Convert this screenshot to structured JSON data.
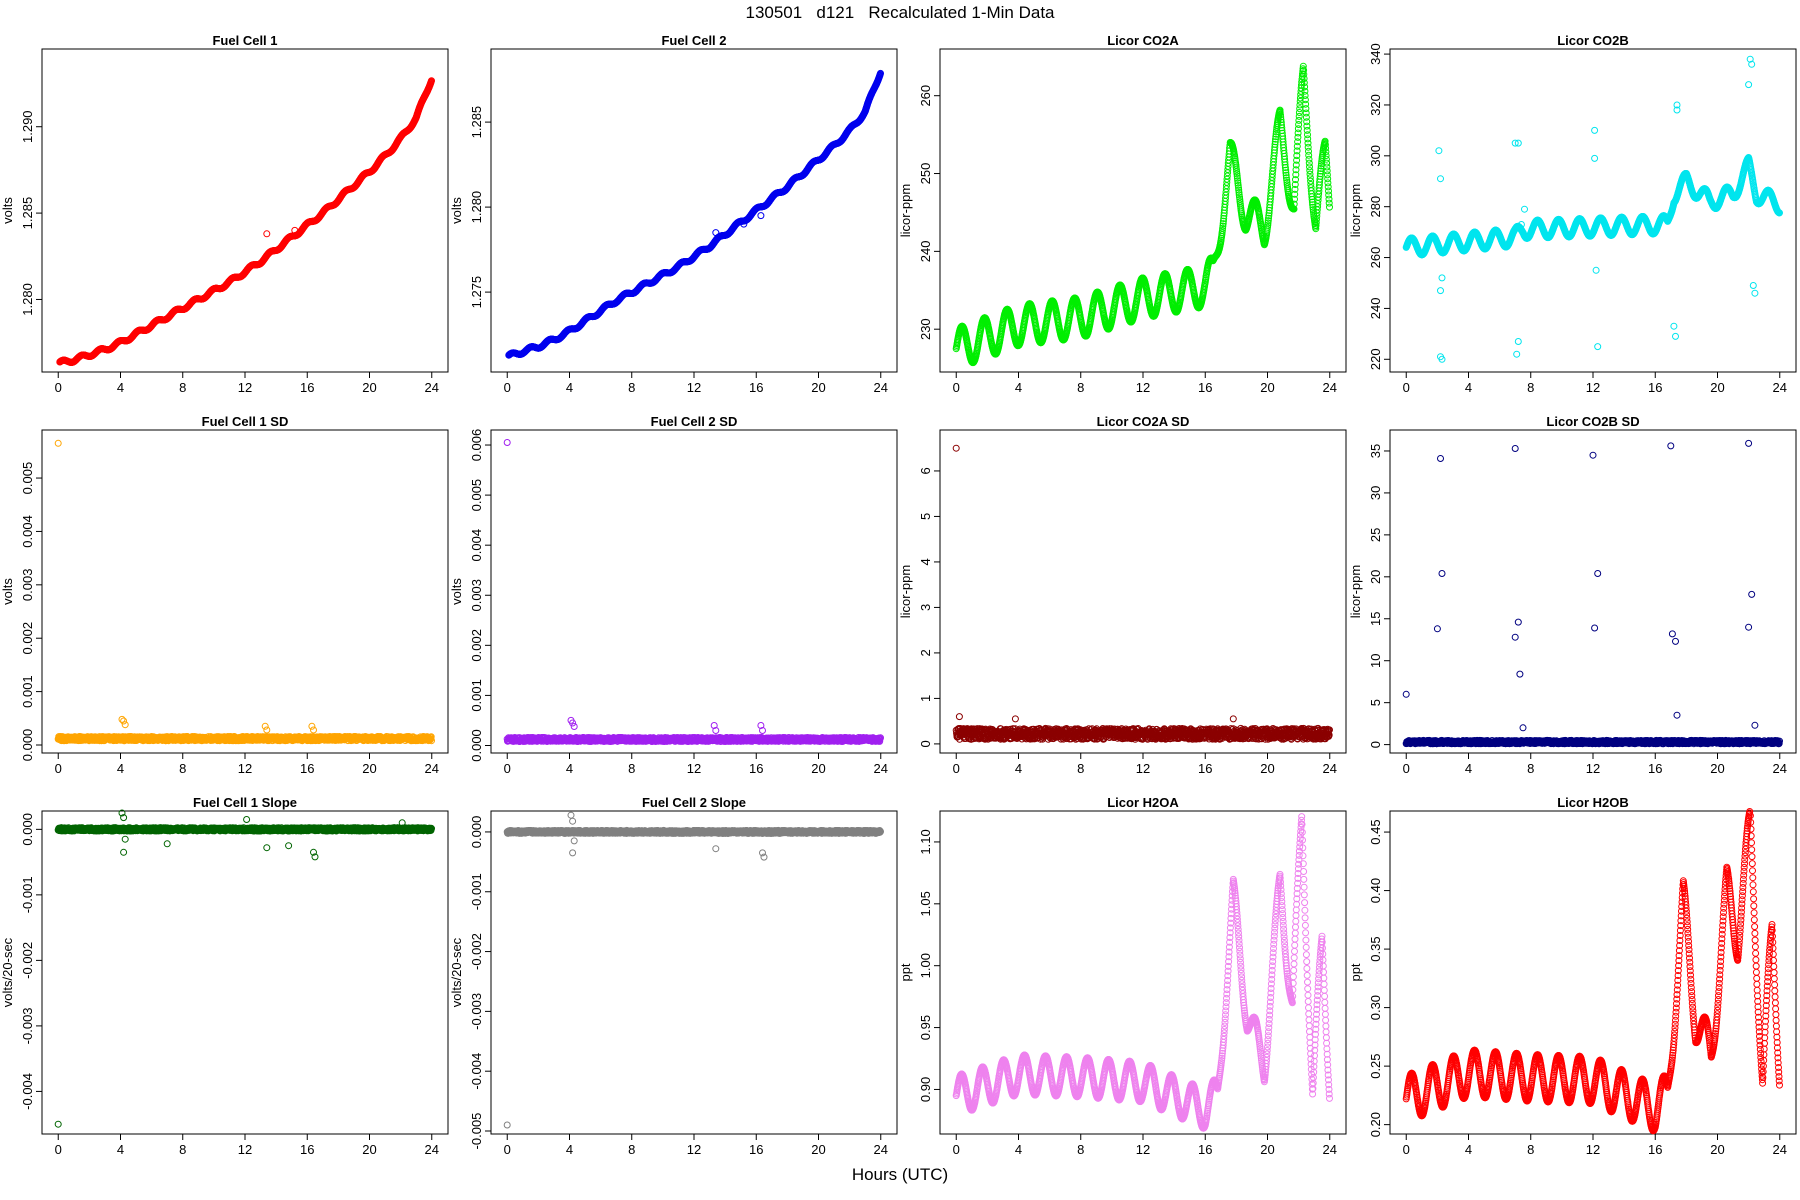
{
  "figure": {
    "title": "130501   d121   Recalculated 1-Min Data",
    "xlabel": "Hours (UTC)"
  },
  "chart_data": [
    {
      "id": "fc1",
      "type": "scatter",
      "title": "Fuel Cell 1",
      "ylabel": "volts",
      "color": "#ff0000",
      "xlim": [
        0,
        24
      ],
      "xticks": [
        0,
        4,
        8,
        12,
        16,
        20,
        24
      ],
      "ylim": [
        1.2758,
        1.2945
      ],
      "yticks": [
        1.28,
        1.285,
        1.29
      ],
      "yticklabels": [
        "1.280",
        "1.285",
        "1.290"
      ],
      "shape": "trend",
      "x": [
        0,
        1,
        2,
        3,
        4,
        5,
        6,
        7,
        8,
        9,
        10,
        11,
        12,
        13,
        14,
        15,
        16,
        17,
        18,
        19,
        20,
        21,
        22,
        23,
        24
      ],
      "y": [
        1.2763,
        1.2765,
        1.2768,
        1.2771,
        1.2775,
        1.278,
        1.2785,
        1.279,
        1.2795,
        1.28,
        1.2805,
        1.281,
        1.2816,
        1.2822,
        1.2829,
        1.2836,
        1.2843,
        1.285,
        1.2858,
        1.2866,
        1.2874,
        1.2883,
        1.2893,
        1.2905,
        1.2928
      ],
      "outliers": [
        [
          13.4,
          1.2838
        ],
        [
          15.2,
          1.284
        ],
        [
          16.3,
          1.2845
        ]
      ]
    },
    {
      "id": "fc2",
      "type": "scatter",
      "title": "Fuel Cell 2",
      "ylabel": "volts",
      "color": "#0000ee",
      "xlim": [
        0,
        24
      ],
      "xticks": [
        0,
        4,
        8,
        12,
        16,
        20,
        24
      ],
      "ylim": [
        1.2703,
        1.2893
      ],
      "yticks": [
        1.275,
        1.28,
        1.285
      ],
      "yticklabels": [
        "1.275",
        "1.280",
        "1.285"
      ],
      "shape": "trend",
      "x": [
        0,
        1,
        2,
        3,
        4,
        5,
        6,
        7,
        8,
        9,
        10,
        11,
        12,
        13,
        14,
        15,
        16,
        17,
        18,
        19,
        20,
        21,
        22,
        23,
        24
      ],
      "y": [
        1.2712,
        1.2715,
        1.2718,
        1.2722,
        1.2727,
        1.2733,
        1.2739,
        1.2745,
        1.275,
        1.2755,
        1.276,
        1.2765,
        1.2771,
        1.2777,
        1.2784,
        1.2791,
        1.2798,
        1.2805,
        1.2812,
        1.282,
        1.2828,
        1.2836,
        1.2845,
        1.2856,
        1.288
      ],
      "outliers": [
        [
          13.4,
          1.2785
        ],
        [
          15.2,
          1.279
        ],
        [
          16.3,
          1.2795
        ]
      ]
    },
    {
      "id": "co2a",
      "type": "scatter",
      "title": "Licor CO2A",
      "ylabel": "licor-ppm",
      "color": "#00ee00",
      "xlim": [
        0,
        24
      ],
      "xticks": [
        0,
        4,
        8,
        12,
        16,
        20,
        24
      ],
      "ylim": [
        224.5,
        266
      ],
      "yticks": [
        230,
        240,
        250,
        260
      ],
      "yticklabels": [
        "230",
        "240",
        "250",
        "260"
      ],
      "shape": "wave",
      "base": [
        [
          0,
          227.5
        ],
        [
          4,
          230.5
        ],
        [
          8,
          231.5
        ],
        [
          12,
          234
        ],
        [
          16,
          235.5
        ],
        [
          16.5,
          237
        ],
        [
          17.6,
          252
        ],
        [
          18.6,
          245
        ],
        [
          19.8,
          243
        ],
        [
          20.8,
          256
        ],
        [
          21.7,
          246
        ],
        [
          22.3,
          262
        ],
        [
          23.1,
          244
        ],
        [
          23.7,
          252
        ],
        [
          24,
          246
        ]
      ],
      "amp": 2.6,
      "period": 1.45,
      "outliers": []
    },
    {
      "id": "co2b",
      "type": "scatter",
      "title": "Licor CO2B",
      "ylabel": "licor-ppm",
      "color": "#00e5ee",
      "xlim": [
        0,
        24
      ],
      "xticks": [
        0,
        4,
        8,
        12,
        16,
        20,
        24
      ],
      "ylim": [
        215,
        342
      ],
      "yticks": [
        220,
        240,
        260,
        280,
        300,
        320,
        340
      ],
      "yticklabels": [
        "220",
        "240",
        "260",
        "280",
        "300",
        "320",
        "340"
      ],
      "shape": "wave",
      "base": [
        [
          0,
          264
        ],
        [
          7,
          268
        ],
        [
          7.5,
          271
        ],
        [
          16.8,
          273
        ],
        [
          17.2,
          285
        ],
        [
          18,
          290
        ],
        [
          19.5,
          282
        ],
        [
          21,
          285
        ],
        [
          22,
          296
        ],
        [
          22.5,
          285
        ],
        [
          24,
          281
        ]
      ],
      "amp": 3.5,
      "period": 1.35,
      "outliers": [
        [
          2.1,
          302
        ],
        [
          2.2,
          291
        ],
        [
          2.3,
          252
        ],
        [
          2.2,
          247
        ],
        [
          2.2,
          221
        ],
        [
          2.3,
          220
        ],
        [
          7,
          305
        ],
        [
          7.2,
          305
        ],
        [
          7.2,
          227
        ],
        [
          7.1,
          222
        ],
        [
          7.4,
          273
        ],
        [
          7.6,
          279
        ],
        [
          12.1,
          310
        ],
        [
          12.1,
          299
        ],
        [
          12.2,
          255
        ],
        [
          12.3,
          225
        ],
        [
          17.4,
          318
        ],
        [
          17.4,
          320
        ],
        [
          17.2,
          233
        ],
        [
          17.3,
          229
        ],
        [
          22.1,
          338
        ],
        [
          22.2,
          336
        ],
        [
          22.0,
          328
        ],
        [
          22.3,
          249
        ],
        [
          22.4,
          246
        ]
      ]
    },
    {
      "id": "fc1sd",
      "type": "scatter",
      "title": "Fuel Cell 1 SD",
      "ylabel": "volts",
      "color": "#ffa500",
      "xlim": [
        0,
        24
      ],
      "xticks": [
        0,
        4,
        8,
        12,
        16,
        20,
        24
      ],
      "ylim": [
        -0.00015,
        0.0059
      ],
      "yticks": [
        0,
        0.001,
        0.002,
        0.003,
        0.004,
        0.005
      ],
      "yticklabels": [
        "0.000",
        "0.001",
        "0.002",
        "0.003",
        "0.004",
        "0.005"
      ],
      "shape": "flat",
      "level": 0.00012,
      "spread": 4e-05,
      "outliers": [
        [
          0,
          0.00565
        ],
        [
          4.1,
          0.00048
        ],
        [
          4.2,
          0.00045
        ],
        [
          4.3,
          0.00038
        ],
        [
          13.3,
          0.00035
        ],
        [
          13.4,
          0.00028
        ],
        [
          16.3,
          0.00035
        ],
        [
          16.4,
          0.00028
        ]
      ]
    },
    {
      "id": "fc2sd",
      "type": "scatter",
      "title": "Fuel Cell 2 SD",
      "ylabel": "volts",
      "color": "#a020f0",
      "xlim": [
        0,
        24
      ],
      "xticks": [
        0,
        4,
        8,
        12,
        16,
        20,
        24
      ],
      "ylim": [
        -0.00015,
        0.0063
      ],
      "yticks": [
        0,
        0.001,
        0.002,
        0.003,
        0.004,
        0.005,
        0.006
      ],
      "yticklabels": [
        "0.000",
        "0.001",
        "0.002",
        "0.003",
        "0.004",
        "0.005",
        "0.006"
      ],
      "shape": "flat",
      "level": 0.00012,
      "spread": 4e-05,
      "outliers": [
        [
          0,
          0.00605
        ],
        [
          4.1,
          0.0005
        ],
        [
          4.2,
          0.00045
        ],
        [
          4.3,
          0.00038
        ],
        [
          13.3,
          0.0004
        ],
        [
          13.4,
          0.0003
        ],
        [
          16.3,
          0.0004
        ],
        [
          16.4,
          0.0003
        ]
      ]
    },
    {
      "id": "co2asd",
      "type": "scatter",
      "title": "Licor CO2A SD",
      "ylabel": "licor-ppm",
      "color": "#8b0000",
      "xlim": [
        0,
        24
      ],
      "xticks": [
        0,
        4,
        8,
        12,
        16,
        20,
        24
      ],
      "ylim": [
        -0.2,
        6.9
      ],
      "yticks": [
        0,
        1,
        2,
        3,
        4,
        5,
        6
      ],
      "yticklabels": [
        "0",
        "1",
        "2",
        "3",
        "4",
        "5",
        "6"
      ],
      "shape": "flat",
      "level": 0.22,
      "spread": 0.12,
      "outliers": [
        [
          0,
          6.5
        ],
        [
          17.8,
          0.55
        ],
        [
          0.2,
          0.6
        ],
        [
          3.8,
          0.55
        ]
      ]
    },
    {
      "id": "co2bsd",
      "type": "scatter",
      "title": "Licor CO2B SD",
      "ylabel": "licor-ppm",
      "color": "#000080",
      "xlim": [
        0,
        24
      ],
      "xticks": [
        0,
        4,
        8,
        12,
        16,
        20,
        24
      ],
      "ylim": [
        -1,
        37.5
      ],
      "yticks": [
        0,
        5,
        10,
        15,
        20,
        25,
        30,
        35
      ],
      "yticklabels": [
        "0",
        "5",
        "10",
        "15",
        "20",
        "25",
        "30",
        "35"
      ],
      "shape": "flat",
      "level": 0.3,
      "spread": 0.2,
      "outliers": [
        [
          0,
          6
        ],
        [
          2,
          13.8
        ],
        [
          2.2,
          34.1
        ],
        [
          2.3,
          20.4
        ],
        [
          7,
          35.3
        ],
        [
          7,
          12.8
        ],
        [
          7.2,
          14.6
        ],
        [
          7.3,
          8.4
        ],
        [
          7.5,
          2
        ],
        [
          12,
          34.5
        ],
        [
          12.1,
          13.9
        ],
        [
          12.3,
          20.4
        ],
        [
          17,
          35.6
        ],
        [
          17.1,
          13.2
        ],
        [
          17.3,
          12.3
        ],
        [
          17.4,
          3.5
        ],
        [
          22,
          35.9
        ],
        [
          22,
          14
        ],
        [
          22.2,
          17.9
        ],
        [
          22.4,
          2.3
        ]
      ]
    },
    {
      "id": "fc1slope",
      "type": "scatter",
      "title": "Fuel Cell 1 Slope",
      "ylabel": "volts/20-sec",
      "color": "#006400",
      "xlim": [
        0,
        24
      ],
      "xticks": [
        0,
        4,
        8,
        12,
        16,
        20,
        24
      ],
      "ylim": [
        -0.00465,
        0.00028
      ],
      "yticks": [
        -0.004,
        -0.003,
        -0.002,
        -0.001,
        0
      ],
      "yticklabels": [
        "-0.004",
        "-0.003",
        "-0.002",
        "-0.001",
        "0.000"
      ],
      "shape": "flat",
      "level": 0.0,
      "spread": 2.5e-05,
      "outliers": [
        [
          0,
          -0.0045
        ],
        [
          4.1,
          0.00025
        ],
        [
          4.2,
          0.00018
        ],
        [
          4.3,
          -0.00015
        ],
        [
          4.2,
          -0.00035
        ],
        [
          13.3,
          0.00072
        ],
        [
          13.4,
          -0.00028
        ],
        [
          16.3,
          0.00062
        ],
        [
          16.4,
          -0.00035
        ],
        [
          16.5,
          -0.00042
        ],
        [
          12.1,
          0.00015
        ],
        [
          14.8,
          -0.00025
        ],
        [
          7,
          -0.00022
        ],
        [
          22.1,
          0.0001
        ]
      ]
    },
    {
      "id": "fc2slope",
      "type": "scatter",
      "title": "Fuel Cell 2 Slope",
      "ylabel": "volts/20-sec",
      "color": "#808080",
      "xlim": [
        0,
        24
      ],
      "xticks": [
        0,
        4,
        8,
        12,
        16,
        20,
        24
      ],
      "ylim": [
        -0.00505,
        0.00035
      ],
      "yticks": [
        -0.005,
        -0.004,
        -0.003,
        -0.002,
        -0.001,
        0
      ],
      "yticklabels": [
        "-0.005",
        "-0.004",
        "-0.003",
        "-0.002",
        "-0.001",
        "0.000"
      ],
      "shape": "flat",
      "level": 0.0,
      "spread": 2.5e-05,
      "outliers": [
        [
          0,
          -0.0049
        ],
        [
          4.1,
          0.00028
        ],
        [
          4.2,
          0.00018
        ],
        [
          4.3,
          -0.00015
        ],
        [
          4.2,
          -0.00035
        ],
        [
          13.3,
          0.00072
        ],
        [
          13.4,
          -0.00028
        ],
        [
          16.3,
          0.00062
        ],
        [
          16.4,
          -0.00035
        ],
        [
          16.5,
          -0.00042
        ]
      ]
    },
    {
      "id": "h2oa",
      "type": "scatter",
      "title": "Licor H2OA",
      "ylabel": "ppt",
      "color": "#ee82ee",
      "xlim": [
        0,
        24
      ],
      "xticks": [
        0,
        4,
        8,
        12,
        16,
        20,
        24
      ],
      "ylim": [
        0.864,
        1.125
      ],
      "yticks": [
        0.9,
        0.95,
        1.0,
        1.05,
        1.1
      ],
      "yticklabels": [
        "0.90",
        "0.95",
        "1.00",
        "1.05",
        "1.10"
      ],
      "shape": "wave",
      "base": [
        [
          0,
          0.895
        ],
        [
          4,
          0.912
        ],
        [
          8,
          0.91
        ],
        [
          12,
          0.906
        ],
        [
          16,
          0.884
        ],
        [
          16.8,
          0.895
        ],
        [
          17.8,
          1.055
        ],
        [
          18.7,
          0.96
        ],
        [
          19.8,
          0.92
        ],
        [
          20.8,
          1.065
        ],
        [
          21.6,
          0.97
        ],
        [
          22.2,
          1.115
        ],
        [
          22.9,
          0.9
        ],
        [
          23.5,
          1.015
        ],
        [
          24,
          0.905
        ]
      ],
      "amp": 0.016,
      "period": 1.35,
      "outliers": []
    },
    {
      "id": "h2ob",
      "type": "scatter",
      "title": "Licor H2OB",
      "ylabel": "ppt",
      "color": "#ff0000",
      "xlim": [
        0,
        24
      ],
      "xticks": [
        0,
        4,
        8,
        12,
        16,
        20,
        24
      ],
      "ylim": [
        0.192,
        0.468
      ],
      "yticks": [
        0.2,
        0.25,
        0.3,
        0.35,
        0.4,
        0.45
      ],
      "yticklabels": [
        "0.20",
        "0.25",
        "0.30",
        "0.35",
        "0.40",
        "0.45"
      ],
      "shape": "wave",
      "base": [
        [
          0,
          0.222
        ],
        [
          4,
          0.244
        ],
        [
          8,
          0.24
        ],
        [
          12,
          0.238
        ],
        [
          16,
          0.214
        ],
        [
          16.8,
          0.225
        ],
        [
          17.8,
          0.39
        ],
        [
          18.6,
          0.29
        ],
        [
          19.6,
          0.26
        ],
        [
          20.6,
          0.4
        ],
        [
          21.3,
          0.36
        ],
        [
          22.1,
          0.455
        ],
        [
          22.9,
          0.24
        ],
        [
          23.5,
          0.36
        ],
        [
          24,
          0.25
        ]
      ],
      "amp": 0.02,
      "period": 1.35,
      "outliers": []
    }
  ]
}
